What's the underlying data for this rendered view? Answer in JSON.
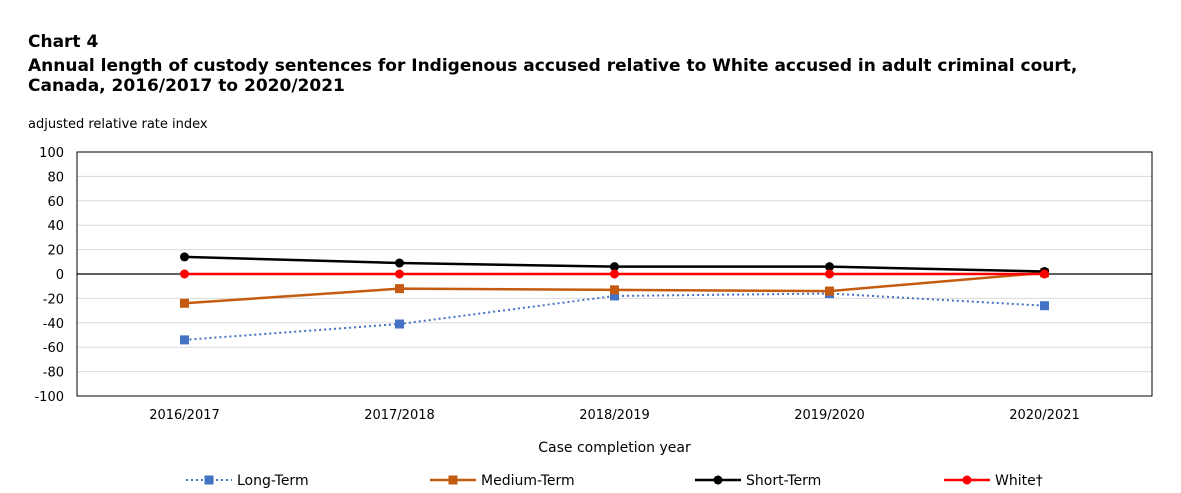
{
  "chart_data": {
    "type": "line",
    "chart_number": "Chart 4",
    "title": "Annual length of custody sentences for Indigenous accused relative to White accused in adult criminal court, Canada, 2016/2017 to 2020/2021",
    "ylabel": "adjusted relative rate index",
    "xlabel": "Case completion year",
    "categories": [
      "2016/2017",
      "2017/2018",
      "2018/2019",
      "2019/2020",
      "2020/2021"
    ],
    "ylim": [
      -100,
      100
    ],
    "yticks": [
      100,
      80,
      60,
      40,
      20,
      0,
      -20,
      -40,
      -60,
      -80,
      -100
    ],
    "grid": true,
    "legend_position": "bottom",
    "series": [
      {
        "name": "Long-Term",
        "values": [
          -54,
          -41,
          -18,
          -16,
          -26
        ],
        "color": "#4472C4",
        "style": "dotted",
        "marker": "square"
      },
      {
        "name": "Medium-Term",
        "values": [
          -24,
          -12,
          -13,
          -14,
          1
        ],
        "color": "#C55A11",
        "style": "solid",
        "marker": "square"
      },
      {
        "name": "Short-Term",
        "values": [
          14,
          9,
          6,
          6,
          2
        ],
        "color": "#000000",
        "style": "solid",
        "marker": "circle"
      },
      {
        "name": "White†",
        "values": [
          0,
          0,
          0,
          0,
          0
        ],
        "color": "#FF0000",
        "style": "solid",
        "marker": "circle"
      }
    ]
  }
}
